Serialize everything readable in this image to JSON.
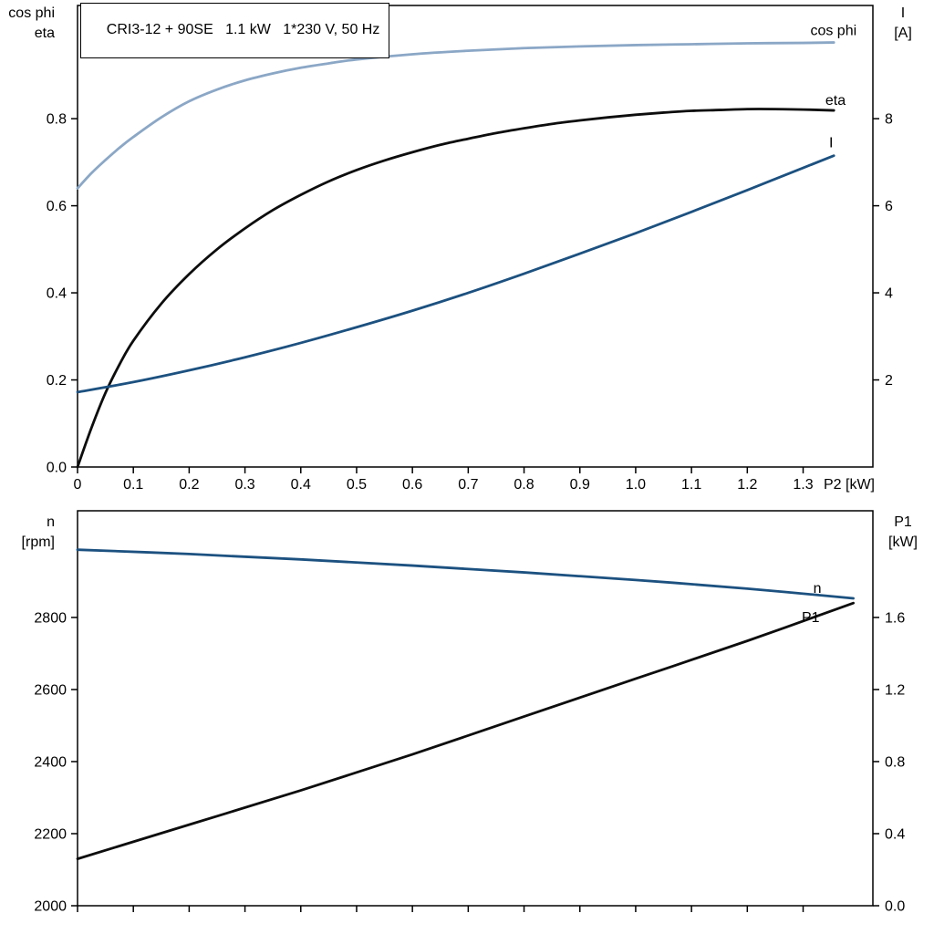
{
  "title_box": "CRI3-12 + 90SE   1.1 kW   1*230 V, 50 Hz",
  "chart_data": [
    {
      "type": "line",
      "title": "CRI3-12 + 90SE   1.1 kW   1*230 V, 50 Hz",
      "x_label": "P2 [kW]",
      "x_range": [
        0,
        1.425
      ],
      "x_tick_values": [
        0,
        0.1,
        0.2,
        0.3,
        0.4,
        0.5,
        0.6,
        0.7,
        0.8,
        0.9,
        1.0,
        1.1,
        1.2,
        1.3
      ],
      "x_tick_labels": [
        "0",
        "0.1",
        "0.2",
        "0.3",
        "0.4",
        "0.5",
        "0.6",
        "0.7",
        "0.8",
        "0.9",
        "1.0",
        "1.1",
        "1.2",
        "1.3"
      ],
      "grid": false,
      "left_axis": {
        "label_line1": "cos phi",
        "label_line2": "eta",
        "range": [
          0,
          1.06
        ],
        "tick_values": [
          0,
          0.2,
          0.4,
          0.6,
          0.8
        ],
        "tick_labels": [
          "0.0",
          "0.2",
          "0.4",
          "0.6",
          "0.8"
        ]
      },
      "right_axis": {
        "label_line1": "I",
        "label_line2": "[A]",
        "range": [
          0,
          10.6
        ],
        "tick_values": [
          2,
          4,
          6,
          8
        ],
        "tick_labels": [
          "2",
          "4",
          "6",
          "8"
        ]
      },
      "series": [
        {
          "name": "cos phi",
          "axis": "left",
          "color": "#8ba7c6",
          "points": [
            [
              0,
              0.64
            ],
            [
              0.025,
              0.675
            ],
            [
              0.05,
              0.705
            ],
            [
              0.075,
              0.733
            ],
            [
              0.1,
              0.758
            ],
            [
              0.15,
              0.803
            ],
            [
              0.2,
              0.84
            ],
            [
              0.25,
              0.867
            ],
            [
              0.3,
              0.888
            ],
            [
              0.35,
              0.904
            ],
            [
              0.4,
              0.917
            ],
            [
              0.45,
              0.927
            ],
            [
              0.5,
              0.936
            ],
            [
              0.6,
              0.948
            ],
            [
              0.7,
              0.956
            ],
            [
              0.8,
              0.962
            ],
            [
              0.9,
              0.966
            ],
            [
              1.0,
              0.969
            ],
            [
              1.1,
              0.971
            ],
            [
              1.2,
              0.973
            ],
            [
              1.3,
              0.974
            ],
            [
              1.355,
              0.975
            ]
          ]
        },
        {
          "name": "eta",
          "axis": "left",
          "color": "#0d0d0d",
          "points": [
            [
              0,
              0
            ],
            [
              0.025,
              0.09
            ],
            [
              0.05,
              0.17
            ],
            [
              0.075,
              0.235
            ],
            [
              0.1,
              0.29
            ],
            [
              0.15,
              0.375
            ],
            [
              0.2,
              0.443
            ],
            [
              0.25,
              0.5
            ],
            [
              0.3,
              0.548
            ],
            [
              0.35,
              0.59
            ],
            [
              0.4,
              0.625
            ],
            [
              0.45,
              0.656
            ],
            [
              0.5,
              0.682
            ],
            [
              0.55,
              0.704
            ],
            [
              0.6,
              0.723
            ],
            [
              0.65,
              0.74
            ],
            [
              0.7,
              0.754
            ],
            [
              0.75,
              0.767
            ],
            [
              0.8,
              0.778
            ],
            [
              0.85,
              0.788
            ],
            [
              0.9,
              0.796
            ],
            [
              0.95,
              0.803
            ],
            [
              1.0,
              0.809
            ],
            [
              1.05,
              0.814
            ],
            [
              1.1,
              0.818
            ],
            [
              1.15,
              0.82
            ],
            [
              1.2,
              0.822
            ],
            [
              1.25,
              0.822
            ],
            [
              1.3,
              0.821
            ],
            [
              1.355,
              0.819
            ]
          ]
        },
        {
          "name": "I",
          "axis": "right",
          "color": "#1c5180",
          "points": [
            [
              0,
              1.72
            ],
            [
              0.1,
              1.95
            ],
            [
              0.2,
              2.22
            ],
            [
              0.3,
              2.52
            ],
            [
              0.4,
              2.85
            ],
            [
              0.5,
              3.21
            ],
            [
              0.6,
              3.59
            ],
            [
              0.7,
              4.0
            ],
            [
              0.8,
              4.44
            ],
            [
              0.9,
              4.9
            ],
            [
              1.0,
              5.37
            ],
            [
              1.1,
              5.86
            ],
            [
              1.2,
              6.36
            ],
            [
              1.3,
              6.87
            ],
            [
              1.355,
              7.15
            ]
          ]
        }
      ]
    },
    {
      "type": "line",
      "x_label": "",
      "x_range": [
        0,
        1.425
      ],
      "x_tick_values": [
        0,
        0.1,
        0.2,
        0.3,
        0.4,
        0.5,
        0.6,
        0.7,
        0.8,
        0.9,
        1.0,
        1.1,
        1.2,
        1.3
      ],
      "x_tick_labels": [],
      "grid": false,
      "left_axis": {
        "label_line1": "n",
        "label_line2": "[rpm]",
        "range": [
          2000,
          3096
        ],
        "tick_values": [
          2000,
          2200,
          2400,
          2600,
          2800
        ],
        "tick_labels": [
          "2000",
          "2200",
          "2400",
          "2600",
          "2800"
        ]
      },
      "right_axis": {
        "label_line1": "P1",
        "label_line2": "[kW]",
        "range": [
          0,
          2.192
        ],
        "tick_values": [
          0,
          0.4,
          0.8,
          1.2,
          1.6
        ],
        "tick_labels": [
          "0.0",
          "0.4",
          "0.8",
          "1.2",
          "1.6"
        ]
      },
      "series": [
        {
          "name": "n",
          "axis": "left",
          "color": "#1c5180",
          "points": [
            [
              0,
              2988
            ],
            [
              0.2,
              2976
            ],
            [
              0.4,
              2961
            ],
            [
              0.6,
              2944
            ],
            [
              0.8,
              2925
            ],
            [
              1.0,
              2904
            ],
            [
              1.2,
              2880
            ],
            [
              1.39,
              2853
            ]
          ]
        },
        {
          "name": "P1",
          "axis": "right",
          "color": "#0d0d0d",
          "points": [
            [
              0,
              0.26
            ],
            [
              0.2,
              0.45
            ],
            [
              0.4,
              0.64
            ],
            [
              0.6,
              0.84
            ],
            [
              0.8,
              1.05
            ],
            [
              1.0,
              1.26
            ],
            [
              1.2,
              1.47
            ],
            [
              1.39,
              1.68
            ]
          ]
        }
      ]
    }
  ]
}
